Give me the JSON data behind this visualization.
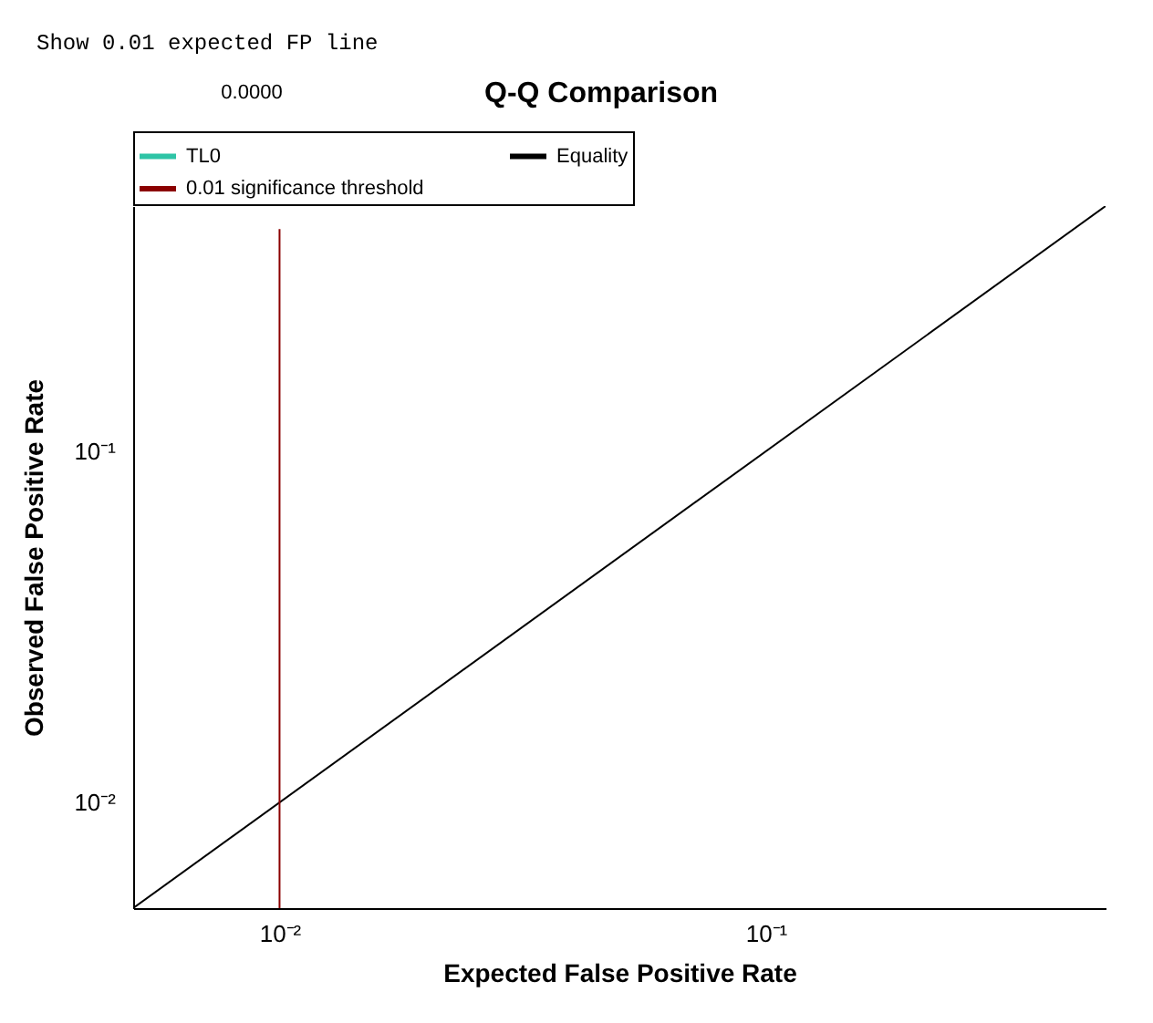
{
  "chart_data": {
    "type": "line",
    "title": "Q-Q Comparison",
    "xlabel": "Expected False Positive Rate",
    "ylabel": "Observed False Positive Rate",
    "annotations": [
      "Show 0.01 expected FP line",
      "0.0000"
    ],
    "series": [
      {
        "name": "TL0",
        "color": "#2ec4a6"
      },
      {
        "name": "Equality",
        "color": "#000000",
        "x": [
          0.005,
          0.5
        ],
        "values": [
          0.005,
          0.5
        ]
      },
      {
        "name": "0.01 significance threshold",
        "color": "#8b0000",
        "x": [
          0.01,
          0.01
        ],
        "values": [
          0.005,
          0.43
        ]
      }
    ],
    "log": "xy",
    "xlim": [
      0.005,
      0.5
    ],
    "ylim": [
      0.005,
      0.5
    ],
    "xticks": [
      {
        "value": 0.01,
        "label": "10⁻²"
      },
      {
        "value": 0.1,
        "label": "10⁻¹"
      }
    ],
    "yticks": [
      {
        "value": 0.01,
        "label": "10⁻²"
      },
      {
        "value": 0.1,
        "label": "10⁻¹"
      }
    ],
    "grid": false,
    "legend": "top",
    "marker": "none",
    "line_style": "solid"
  }
}
